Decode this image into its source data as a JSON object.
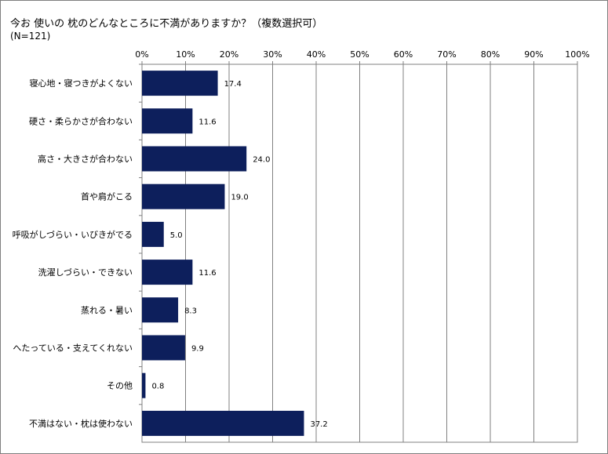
{
  "chart_data": {
    "type": "bar",
    "orientation": "horizontal",
    "title": "今お 使いの 枕のどんなところに不満がありますか？（複数選択可）",
    "subtitle": "(N=121)",
    "xlim": [
      0,
      100
    ],
    "x_ticks": [
      "0%",
      "10%",
      "20%",
      "30%",
      "40%",
      "50%",
      "60%",
      "70%",
      "80%",
      "90%",
      "100%"
    ],
    "grid": true,
    "bar_color": "#0d1f5c",
    "categories": [
      "寝心地・寝つきがよくない",
      "硬さ・柔らかさが合わない",
      "高さ・大きさが合わない",
      "首や肩がこる",
      "呼吸がしづらい・いびきがでる",
      "洗濯しづらい・できない",
      "蒸れる・暑い",
      "へたっている・支えてくれない",
      "その他",
      "不満はない・枕は使わない"
    ],
    "values": [
      17.4,
      11.6,
      24.0,
      19.0,
      5.0,
      11.6,
      8.3,
      9.9,
      0.8,
      37.2
    ],
    "value_labels": [
      "17.4",
      "11.6",
      "24.0",
      "19.0",
      "5.0",
      "11.6",
      "8.3",
      "9.9",
      "0.8",
      "37.2"
    ]
  }
}
